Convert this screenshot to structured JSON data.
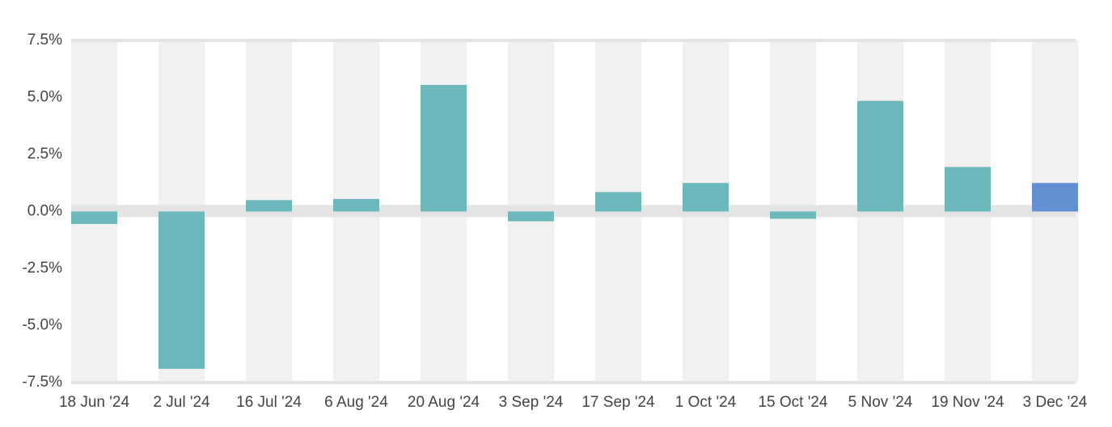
{
  "chart_data": {
    "type": "bar",
    "categories": [
      "18 Jun '24",
      "2 Jul '24",
      "16 Jul '24",
      "6 Aug '24",
      "20 Aug '24",
      "3 Sep '24",
      "17 Sep '24",
      "1 Oct '24",
      "15 Oct '24",
      "5 Nov '24",
      "19 Nov '24",
      "3 Dec '24"
    ],
    "values": [
      -0.55,
      -6.9,
      0.5,
      0.55,
      5.55,
      -0.43,
      0.85,
      1.25,
      -0.32,
      4.85,
      1.95,
      1.25
    ],
    "colors": [
      "#6db8ba",
      "#6db8ba",
      "#6db8ba",
      "#6db8ba",
      "#6db8ba",
      "#6db8ba",
      "#6db8ba",
      "#6db8ba",
      "#6db8ba",
      "#6db8ba",
      "#6db8ba",
      "#6390d1"
    ],
    "ylim": [
      -7.5,
      7.5
    ],
    "yticks": [
      {
        "value": 7.5,
        "label": "7.5%"
      },
      {
        "value": 5,
        "label": "5.0%"
      },
      {
        "value": 2.5,
        "label": "2.5%"
      },
      {
        "value": 0,
        "label": "0.0%"
      },
      {
        "value": -2.5,
        "label": "-2.5%"
      },
      {
        "value": -5,
        "label": "-5.0%"
      },
      {
        "value": -7.5,
        "label": "-7.5%"
      }
    ]
  }
}
